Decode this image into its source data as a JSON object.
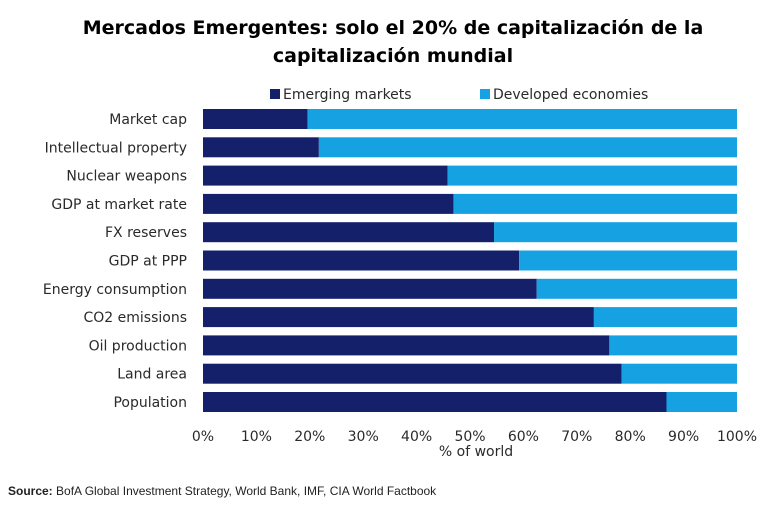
{
  "page": {
    "title_line1": "Mercados Emergentes: solo el 20% de capitalización de la",
    "title_line2": "capitalización mundial",
    "source_label": "Source:",
    "source_text": " BofA Global Investment Strategy, World Bank, IMF, CIA World Factbook"
  },
  "chart_data": {
    "type": "bar",
    "orientation": "horizontal",
    "stacked": true,
    "title": "Mercados Emergentes: solo el 20% de capitalización de la capitalización mundial",
    "xlabel": "% of world",
    "ylabel": "",
    "xlim": [
      0,
      100
    ],
    "xticks": [
      "0%",
      "10%",
      "20%",
      "30%",
      "40%",
      "50%",
      "60%",
      "70%",
      "80%",
      "90%",
      "100%"
    ],
    "grid": false,
    "legend_position": "top",
    "categories": [
      "Market cap",
      "Intellectual property",
      "Nuclear weapons",
      "GDP at market rate",
      "FX reserves",
      "GDP at PPP",
      "Energy consumption",
      "CO2 emissions",
      "Oil production",
      "Land area",
      "Population"
    ],
    "series": [
      {
        "name": "Emerging markets",
        "color": "#15206b",
        "values": [
          19.6,
          21.7,
          45.8,
          46.9,
          54.5,
          59.2,
          62.5,
          73.2,
          76.1,
          78.4,
          86.8
        ]
      },
      {
        "name": "Developed economies",
        "color": "#16a2e2",
        "values": [
          80.4,
          78.3,
          54.2,
          53.1,
          45.5,
          40.8,
          37.5,
          26.8,
          23.9,
          21.6,
          13.2
        ]
      }
    ]
  }
}
